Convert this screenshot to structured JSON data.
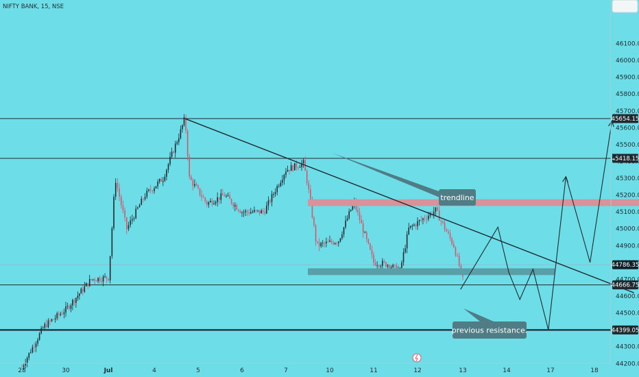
{
  "header": {
    "symbol": "NIFTY BANK, 15, NSE"
  },
  "chart_data": {
    "type": "candlestick",
    "ylim": [
      44150,
      46200
    ],
    "y_ticks": [
      44200,
      44300,
      44400,
      44500,
      44600,
      44700,
      44800,
      44900,
      45000,
      45100,
      45200,
      45300,
      45400,
      45500,
      45600,
      45700,
      45800,
      45900,
      46000,
      46100
    ],
    "x_ticks": [
      "28",
      "30",
      "Jul",
      "4",
      "5",
      "6",
      "7",
      "10",
      "11",
      "12",
      "13",
      "14",
      "17",
      "18"
    ],
    "price_levels": [
      {
        "label": "45654.15",
        "value": 45654.15
      },
      {
        "label": "45418.15",
        "value": 45418.15
      },
      {
        "label": "44786.35",
        "value": 44786.35
      },
      {
        "label": "44666.75",
        "value": 44666.75
      },
      {
        "label": "44399.05",
        "value": 44399.05
      }
    ],
    "current_price": 44786.35,
    "key_points": [
      {
        "x": 0.0,
        "close": 44180
      },
      {
        "x": 0.5,
        "close": 44420
      },
      {
        "x": 1.0,
        "close": 44520
      },
      {
        "x": 1.6,
        "close": 44700
      },
      {
        "x": 2.0,
        "close": 44710
      },
      {
        "x": 2.05,
        "close": 44880
      },
      {
        "x": 2.15,
        "close": 45300
      },
      {
        "x": 2.4,
        "close": 45000
      },
      {
        "x": 2.8,
        "close": 45200
      },
      {
        "x": 3.2,
        "close": 45300
      },
      {
        "x": 3.6,
        "close": 45580
      },
      {
        "x": 3.7,
        "close": 45660
      },
      {
        "x": 3.8,
        "close": 45300
      },
      {
        "x": 4.2,
        "close": 45150
      },
      {
        "x": 4.6,
        "close": 45200
      },
      {
        "x": 5.0,
        "close": 45100
      },
      {
        "x": 5.5,
        "close": 45100
      },
      {
        "x": 6.0,
        "close": 45350
      },
      {
        "x": 6.4,
        "close": 45390
      },
      {
        "x": 6.5,
        "close": 45260
      },
      {
        "x": 6.7,
        "close": 44900
      },
      {
        "x": 7.2,
        "close": 44930
      },
      {
        "x": 7.55,
        "close": 45160
      },
      {
        "x": 8.0,
        "close": 44800
      },
      {
        "x": 8.3,
        "close": 44790
      },
      {
        "x": 8.6,
        "close": 44750
      },
      {
        "x": 8.8,
        "close": 45000
      },
      {
        "x": 9.4,
        "close": 45110
      },
      {
        "x": 9.8,
        "close": 44900
      },
      {
        "x": 10.0,
        "close": 44700
      }
    ],
    "trendline": {
      "from": {
        "x": 3.7,
        "value": 45654
      },
      "to": {
        "x": 13.9,
        "value": 44620
      }
    },
    "zones": [
      {
        "color": "#d9919c",
        "low": 45135,
        "high": 45175,
        "x_from": 6.5,
        "x_to": 14.2
      },
      {
        "color": "#5a9ea8",
        "low": 44725,
        "high": 44765,
        "x_from": 6.5,
        "x_to": 12.1
      }
    ],
    "projection": [
      {
        "x": 9.95,
        "value": 44640
      },
      {
        "x": 10.8,
        "value": 45010
      },
      {
        "x": 11.05,
        "value": 44740
      },
      {
        "x": 11.3,
        "value": 44580
      },
      {
        "x": 11.6,
        "value": 44760
      },
      {
        "x": 11.95,
        "value": 44400
      },
      {
        "x": 12.35,
        "value": 45310
      },
      {
        "x": 12.9,
        "value": 44800
      },
      {
        "x": 13.4,
        "value": 45640
      }
    ],
    "annotations": [
      {
        "text": "trendline"
      },
      {
        "text": "previous resistance."
      }
    ]
  }
}
